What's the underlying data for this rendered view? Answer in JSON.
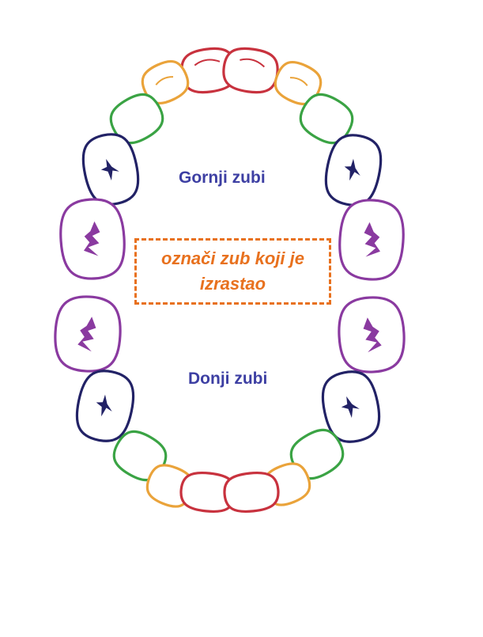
{
  "labels": {
    "upper": "Gornji zubi",
    "lower": "Donji zubi",
    "instruction": "označi zub koji je izrastao"
  },
  "colors": {
    "incisor_central": "#c8323e",
    "incisor_lateral": "#eaa33a",
    "canine": "#3aa344",
    "molar_first": "#222266",
    "molar_second": "#8a3aa0",
    "label_text": "#3d3fa3",
    "instruction": "#e8711e"
  },
  "teeth": [
    {
      "id": "upper-right-central-incisor",
      "type": "incisor_central"
    },
    {
      "id": "upper-left-central-incisor",
      "type": "incisor_central"
    },
    {
      "id": "upper-right-lateral-incisor",
      "type": "incisor_lateral"
    },
    {
      "id": "upper-left-lateral-incisor",
      "type": "incisor_lateral"
    },
    {
      "id": "upper-right-canine",
      "type": "canine"
    },
    {
      "id": "upper-left-canine",
      "type": "canine"
    },
    {
      "id": "upper-right-first-molar",
      "type": "molar_first"
    },
    {
      "id": "upper-left-first-molar",
      "type": "molar_first"
    },
    {
      "id": "upper-right-second-molar",
      "type": "molar_second"
    },
    {
      "id": "upper-left-second-molar",
      "type": "molar_second"
    },
    {
      "id": "lower-right-second-molar",
      "type": "molar_second"
    },
    {
      "id": "lower-left-second-molar",
      "type": "molar_second"
    },
    {
      "id": "lower-right-first-molar",
      "type": "molar_first"
    },
    {
      "id": "lower-left-first-molar",
      "type": "molar_first"
    },
    {
      "id": "lower-right-canine",
      "type": "canine"
    },
    {
      "id": "lower-left-canine",
      "type": "canine"
    },
    {
      "id": "lower-right-lateral-incisor",
      "type": "incisor_lateral"
    },
    {
      "id": "lower-left-lateral-incisor",
      "type": "incisor_lateral"
    },
    {
      "id": "lower-right-central-incisor",
      "type": "incisor_central"
    },
    {
      "id": "lower-left-central-incisor",
      "type": "incisor_central"
    }
  ]
}
